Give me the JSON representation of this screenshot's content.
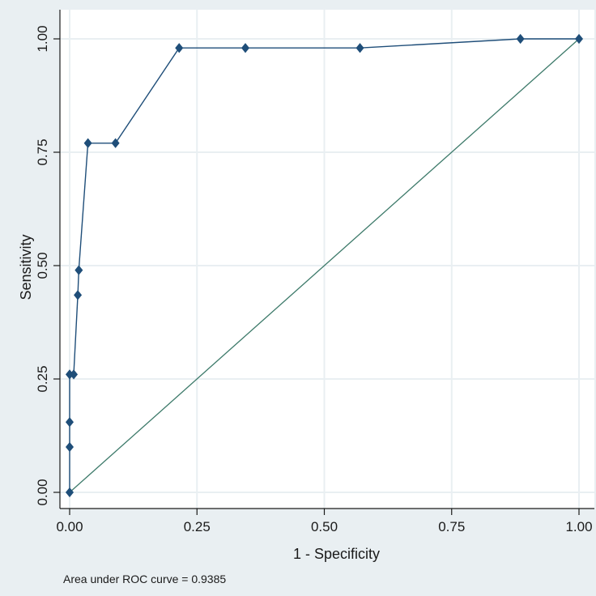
{
  "chart_data": {
    "type": "line",
    "xlabel": "1 - Specificity",
    "ylabel": "Sensitivity",
    "xlim": [
      0,
      1
    ],
    "ylim": [
      0,
      1
    ],
    "x_ticks": [
      "0.00",
      "0.25",
      "0.50",
      "0.75",
      "1.00"
    ],
    "y_ticks": [
      "0.00",
      "0.25",
      "0.50",
      "0.75",
      "1.00"
    ],
    "grid": true,
    "note": "Area under ROC curve = 0.9385",
    "series": [
      {
        "color": "#1f4e79",
        "marker": "diamond",
        "x": [
          0.0,
          0.0,
          0.0,
          0.0,
          0.008,
          0.016,
          0.018,
          0.036,
          0.09,
          0.215,
          0.345,
          0.57,
          0.885,
          1.0
        ],
        "y": [
          0.0,
          0.1,
          0.155,
          0.26,
          0.26,
          0.435,
          0.49,
          0.77,
          0.77,
          0.98,
          0.98,
          0.98,
          1.0,
          1.0
        ]
      }
    ],
    "reference_line": {
      "color": "#3d7a6a",
      "x": [
        0,
        1
      ],
      "y": [
        0,
        1
      ]
    }
  },
  "colors": {
    "background": "#e9eff2",
    "plot_background": "#ffffff",
    "grid": "#e9eff2",
    "axis": "#1a1a1a"
  }
}
